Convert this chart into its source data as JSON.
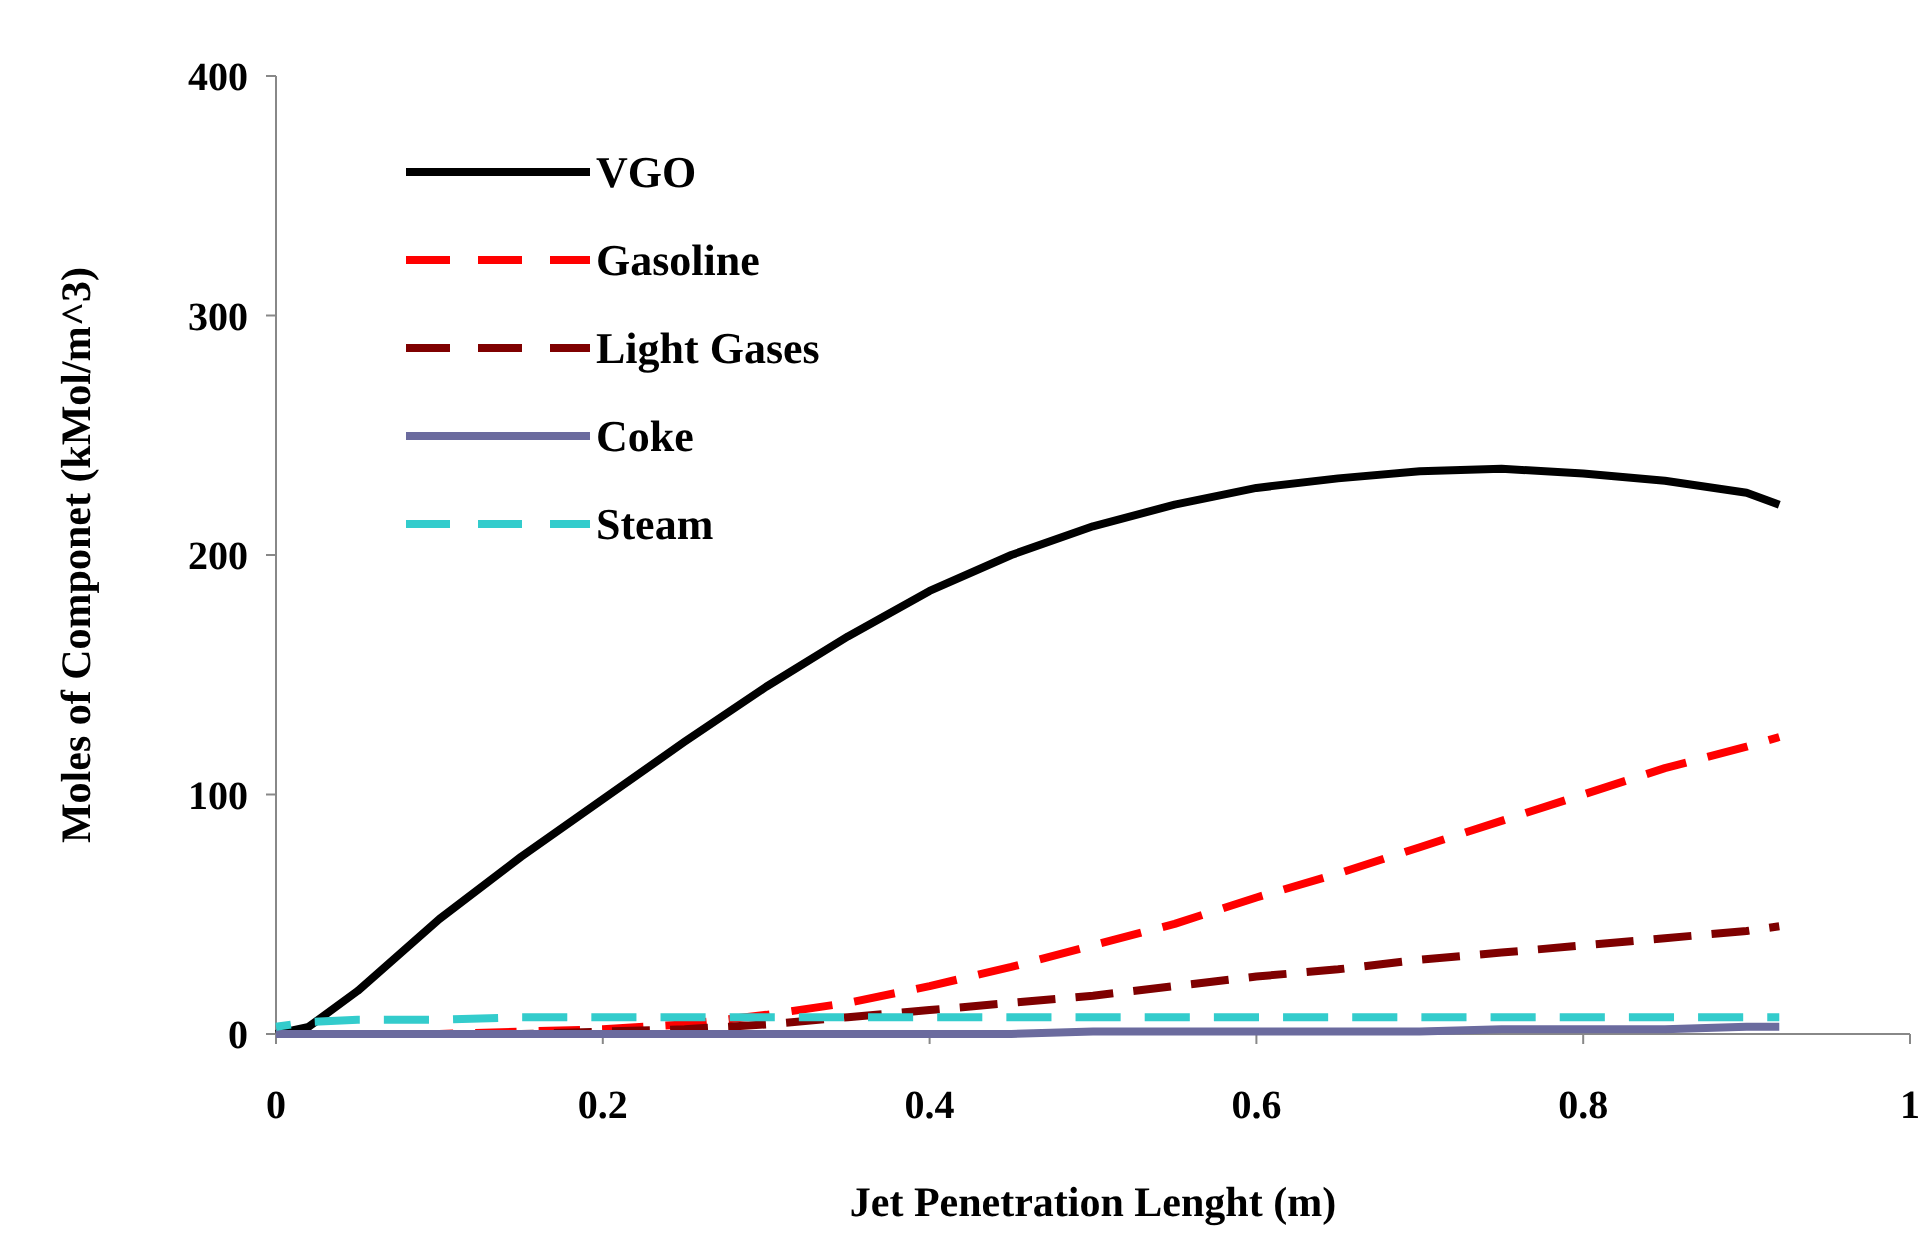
{
  "chart_data": {
    "type": "line",
    "xlabel": "Jet Penetration Lenght (m)",
    "ylabel": "Moles of Componet (kMol/m^3)",
    "xlim": [
      0,
      1
    ],
    "ylim": [
      0,
      400
    ],
    "xticks": [
      0,
      {
        "value": 0.2,
        "label": "0.2"
      },
      {
        "value": 0.4,
        "label": "0.4"
      },
      {
        "value": 0.6,
        "label": "0.6"
      },
      {
        "value": 0.8,
        "label": "0.8"
      },
      1
    ],
    "yticks": [
      0,
      100,
      200,
      300,
      400
    ],
    "legend": "top left",
    "grid": false,
    "x": [
      0,
      0.02,
      0.05,
      0.1,
      0.15,
      0.2,
      0.25,
      0.3,
      0.35,
      0.4,
      0.45,
      0.5,
      0.55,
      0.6,
      0.65,
      0.7,
      0.75,
      0.8,
      0.85,
      0.9,
      0.92
    ],
    "series": [
      {
        "name": "VGO",
        "color": "#000000",
        "line_style": "solid",
        "values": [
          0,
          3,
          18,
          48,
          74,
          98,
          122,
          145,
          166,
          185,
          200,
          212,
          221,
          228,
          232,
          235,
          236,
          234,
          231,
          226,
          221
        ]
      },
      {
        "name": "Gasoline",
        "color": "#ff0000",
        "line_style": "dashed",
        "values": [
          null,
          null,
          null,
          0,
          1,
          2,
          4,
          8,
          13,
          20,
          28,
          37,
          46,
          57,
          67,
          78,
          89,
          100,
          111,
          120,
          124
        ]
      },
      {
        "name": "Light Gases",
        "color": "#7f0000",
        "line_style": "dashed",
        "values": [
          null,
          null,
          null,
          null,
          0,
          1,
          2,
          4,
          7,
          10,
          13,
          16,
          20,
          24,
          27,
          31,
          34,
          37,
          40,
          43,
          45
        ]
      },
      {
        "name": "Coke",
        "color": "#6b6b9e",
        "line_style": "solid",
        "values": [
          0,
          0,
          0,
          0,
          0,
          0,
          0,
          0,
          0,
          0,
          0,
          1,
          1,
          1,
          1,
          1,
          2,
          2,
          2,
          3,
          3
        ]
      },
      {
        "name": "Steam",
        "color": "#33cccc",
        "line_style": "dashed",
        "values": [
          3,
          5,
          6,
          6,
          7,
          7,
          7,
          7,
          7,
          7,
          7,
          7,
          7,
          7,
          7,
          7,
          7,
          7,
          7,
          7,
          7
        ]
      }
    ]
  }
}
